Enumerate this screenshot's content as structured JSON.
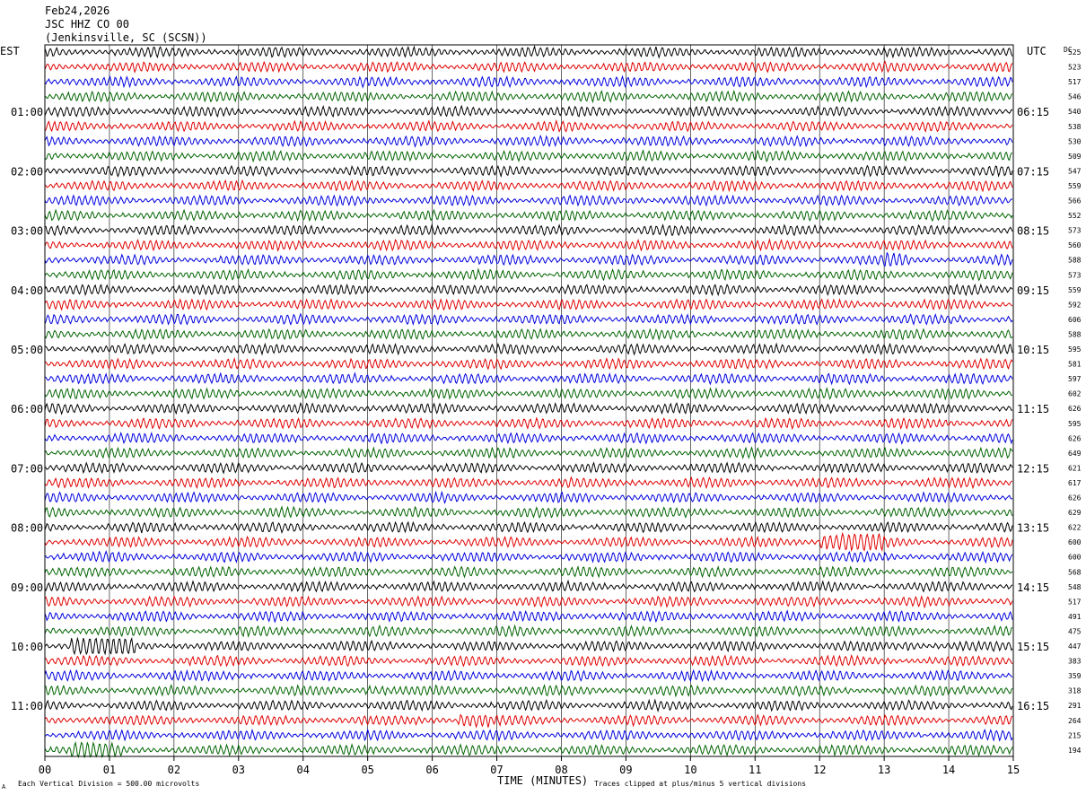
{
  "header": {
    "date": "Feb24,2026",
    "channel": "JSC HHZ CO 00",
    "station": "(Jenkinsville, SC (SCSN))"
  },
  "labels": {
    "left_zone": "EST",
    "right_zone": "UTC",
    "dc_header": "DC",
    "x_title": "TIME (MINUTES)",
    "footer_left": "Each Vertical Division =  500.00 microvolts",
    "footer_right": "Traces clipped at plus/minus 5 vertical divisions",
    "footer_mark": "A"
  },
  "chart_data": {
    "type": "line",
    "xlim": [
      0,
      15
    ],
    "x_ticks": [
      "00",
      "01",
      "02",
      "03",
      "04",
      "05",
      "06",
      "07",
      "08",
      "09",
      "10",
      "11",
      "12",
      "13",
      "14",
      "15"
    ],
    "trace_colors": [
      "#000000",
      "#e00000",
      "#0000e0",
      "#006400"
    ],
    "est_labels": [
      "01:00",
      "02:00",
      "03:00",
      "04:00",
      "05:00",
      "06:00",
      "07:00",
      "08:00",
      "09:00",
      "10:00",
      "11:00"
    ],
    "utc_labels": [
      "06:15",
      "07:15",
      "08:15",
      "09:15",
      "10:15",
      "11:15",
      "12:15",
      "13:15",
      "14:15",
      "15:15",
      "16:15"
    ],
    "dc_offsets": [
      "525",
      "523",
      "517",
      "546",
      "540",
      "538",
      "530",
      "509",
      "547",
      "559",
      "566",
      "552",
      "573",
      "560",
      "588",
      "573",
      "559",
      "592",
      "606",
      "588",
      "595",
      "581",
      "597",
      "602",
      "626",
      "595",
      "626",
      "649",
      "621",
      "617",
      "626",
      "629",
      "622",
      "600",
      "600",
      "568",
      "548",
      "517",
      "491",
      "475",
      "447",
      "383",
      "359",
      "318",
      "291",
      "264",
      "215",
      "194"
    ],
    "events": [
      {
        "trace": 33,
        "start_min": 12.0,
        "end_min": 13.0,
        "amp": 2.4
      },
      {
        "trace": 40,
        "start_min": 0.4,
        "end_min": 1.4,
        "amp": 2.2
      },
      {
        "trace": 40,
        "start_min": 13.3,
        "end_min": 13.6,
        "amp": 1.4
      },
      {
        "trace": 43,
        "start_min": 4.9,
        "end_min": 5.3,
        "amp": 1.8
      },
      {
        "trace": 43,
        "start_min": 14.2,
        "end_min": 15.0,
        "amp": 1.3
      },
      {
        "trace": 45,
        "start_min": 6.4,
        "end_min": 6.9,
        "amp": 1.9
      },
      {
        "trace": 47,
        "start_min": 0.4,
        "end_min": 1.2,
        "amp": 1.4
      },
      {
        "trace": 14,
        "start_min": 13.0,
        "end_min": 13.4,
        "amp": 1.4
      }
    ]
  }
}
